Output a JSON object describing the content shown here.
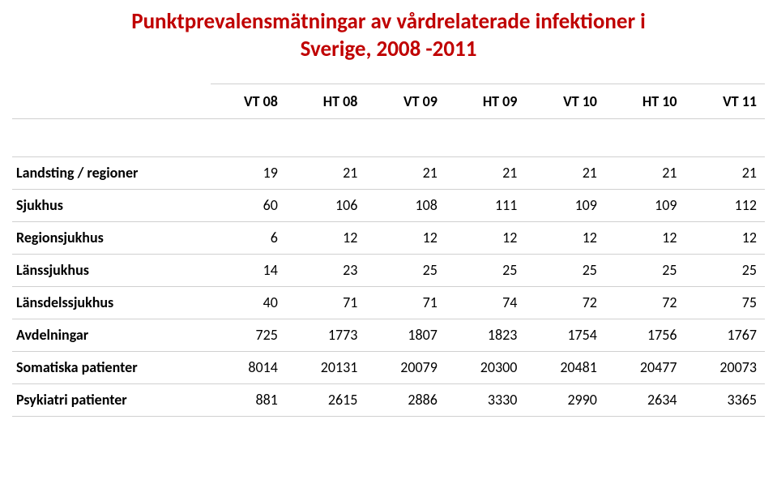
{
  "title_line1": "Punktprevalensmätningar av vårdrelaterade infektioner i",
  "title_line2": "Sverige, 2008 -2011",
  "header": [
    "",
    "VT 08",
    "HT 08",
    "VT 09",
    "HT 09",
    "VT 10",
    "HT 10",
    "VT 11"
  ],
  "rows": [
    {
      "label": "Landsting / regioner",
      "v": [
        "19",
        "21",
        "21",
        "21",
        "21",
        "21",
        "21"
      ]
    },
    {
      "label": "Sjukhus",
      "v": [
        "60",
        "106",
        "108",
        "111",
        "109",
        "109",
        "112"
      ]
    },
    {
      "label": "Regionsjukhus",
      "v": [
        "6",
        "12",
        "12",
        "12",
        "12",
        "12",
        "12"
      ]
    },
    {
      "label": "Länssjukhus",
      "v": [
        "14",
        "23",
        "25",
        "25",
        "25",
        "25",
        "25"
      ]
    },
    {
      "label": "Länsdelssjukhus",
      "v": [
        "40",
        "71",
        "71",
        "74",
        "72",
        "72",
        "75"
      ]
    },
    {
      "label": "Avdelningar",
      "v": [
        "725",
        "1773",
        "1807",
        "1823",
        "1754",
        "1756",
        "1767"
      ]
    },
    {
      "label": "Somatiska patienter",
      "v": [
        "8014",
        "20131",
        "20079",
        "20300",
        "20481",
        "20477",
        "20073"
      ]
    },
    {
      "label": "Psykiatri patienter",
      "v": [
        "881",
        "2615",
        "2886",
        "3330",
        "2990",
        "2634",
        "3365"
      ]
    }
  ]
}
